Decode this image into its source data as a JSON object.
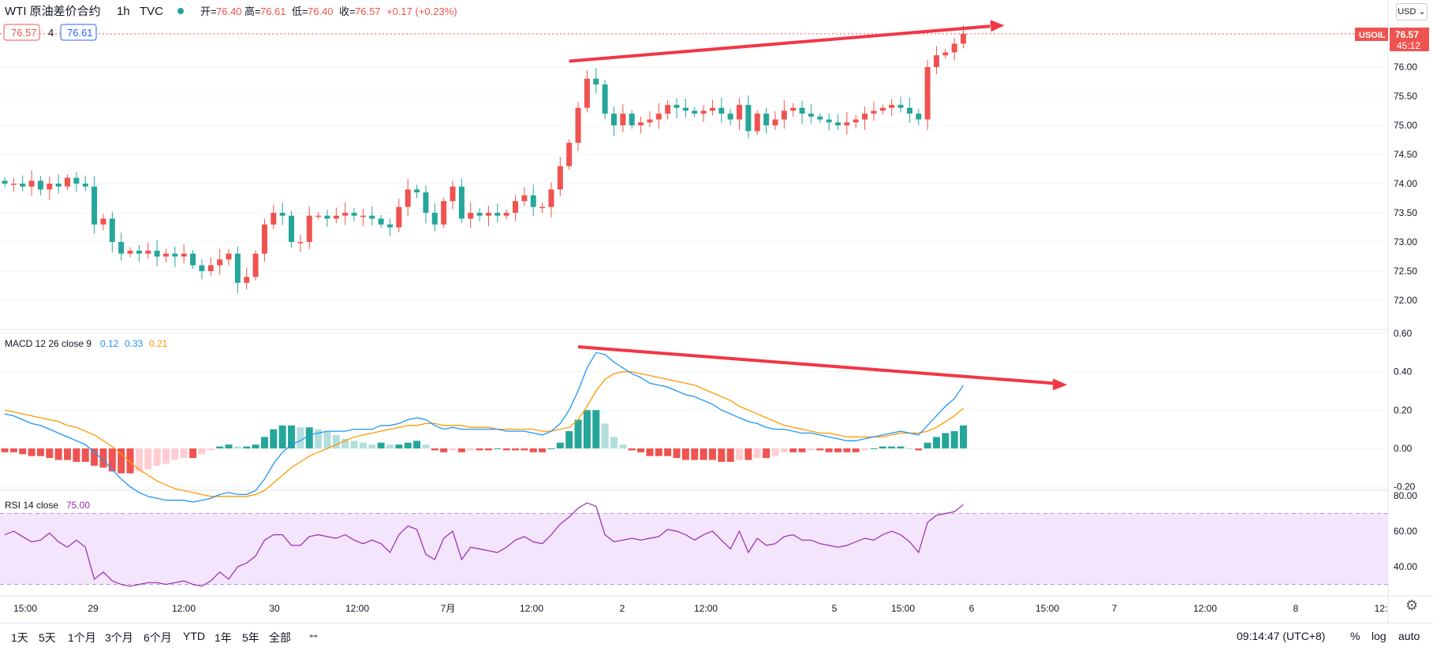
{
  "header": {
    "symbol": "WTI 原油差价合约",
    "interval": "1h",
    "source": "TVC",
    "ohlc": [
      {
        "label": "开=",
        "value": "76.40"
      },
      {
        "label": "高=",
        "value": "76.61"
      },
      {
        "label": "低=",
        "value": "76.40"
      },
      {
        "label": "收=",
        "value": "76.57"
      }
    ],
    "change": "+0.17 (+0.23%)",
    "bid": "76.57",
    "spread": "4",
    "ask": "76.61",
    "currency": "USD",
    "price_tag": {
      "symbol": "USOIL",
      "price": "76.57",
      "countdown": "45:12"
    }
  },
  "colors": {
    "up": "#ef5350",
    "down": "#26a69a",
    "macd_line": "#2196f3",
    "signal_line": "#ff9800",
    "rsi": "#9c27b0",
    "rsi_band": "#f3e5fb",
    "annotation": "#f23645"
  },
  "macd_legend": {
    "name": "MACD 12 26 close 9",
    "v1": "0.12",
    "v2": "0.33",
    "v3": "0.21"
  },
  "rsi_legend": {
    "name": "RSI 14 close",
    "value": "75.00"
  },
  "time_axis": [
    "15:00",
    "29",
    "12:00",
    "30",
    "12:00",
    "7月",
    "12:00",
    "2",
    "12:00",
    "5",
    "15:00",
    "6",
    "15:00",
    "7",
    "12:00",
    "8",
    "12:"
  ],
  "bottom_bar": {
    "timeframes": [
      "1天",
      "5天",
      "1个月",
      "3个月",
      "6个月",
      "YTD",
      "1年",
      "5年",
      "全部"
    ],
    "clock": "09:14:47 (UTC+8)",
    "percent": "%",
    "log": "log",
    "auto": "auto"
  },
  "chart_data": [
    {
      "type": "candlestick",
      "title": "WTI 原油差价合约 · 1h · TVC",
      "ylim": [
        71.7,
        76.85
      ],
      "yticks": [
        "76.00",
        "75.50",
        "75.00",
        "74.50",
        "74.00",
        "73.50",
        "73.00",
        "72.50",
        "72.00"
      ],
      "close": [
        74.0,
        74.0,
        73.95,
        74.05,
        73.9,
        74.0,
        73.95,
        74.1,
        74.0,
        73.95,
        73.3,
        73.4,
        73.0,
        72.8,
        72.85,
        72.8,
        72.85,
        72.75,
        72.8,
        72.75,
        72.8,
        72.6,
        72.5,
        72.6,
        72.7,
        72.8,
        72.3,
        72.4,
        72.8,
        73.3,
        73.5,
        73.45,
        73.0,
        73.0,
        73.45,
        73.45,
        73.4,
        73.45,
        73.5,
        73.45,
        73.45,
        73.4,
        73.3,
        73.25,
        73.6,
        73.9,
        73.85,
        73.5,
        73.3,
        73.7,
        73.95,
        73.4,
        73.5,
        73.45,
        73.5,
        73.45,
        73.5,
        73.7,
        73.8,
        73.6,
        73.6,
        73.9,
        74.3,
        74.7,
        75.3,
        75.8,
        75.7,
        75.2,
        75.0,
        75.2,
        75.0,
        75.05,
        75.1,
        75.2,
        75.35,
        75.3,
        75.25,
        75.2,
        75.25,
        75.3,
        75.2,
        75.1,
        75.35,
        74.9,
        75.2,
        75.0,
        75.1,
        75.25,
        75.3,
        75.2,
        75.15,
        75.1,
        75.05,
        75.0,
        75.05,
        75.1,
        75.2,
        75.25,
        75.3,
        75.35,
        75.3,
        75.2,
        75.1,
        76.0,
        76.2,
        76.25,
        76.4,
        76.57
      ],
      "trend_annotation": {
        "from_bar": 63,
        "from_price": 76.1,
        "to_bar": 110,
        "to_price": 76.7
      }
    },
    {
      "type": "line",
      "title": "MACD 12 26 close 9",
      "ylim": [
        -0.3,
        0.6
      ],
      "yticks": [
        "0.60",
        "0.40",
        "0.20",
        "0.00",
        "-0.20"
      ],
      "series": [
        {
          "name": "MACD",
          "values": [
            0.18,
            0.17,
            0.15,
            0.13,
            0.12,
            0.1,
            0.08,
            0.06,
            0.04,
            0.02,
            -0.02,
            -0.06,
            -0.11,
            -0.16,
            -0.2,
            -0.23,
            -0.25,
            -0.26,
            -0.27,
            -0.27,
            -0.27,
            -0.28,
            -0.27,
            -0.26,
            -0.24,
            -0.23,
            -0.24,
            -0.24,
            -0.22,
            -0.16,
            -0.08,
            -0.02,
            0.02,
            0.04,
            0.07,
            0.08,
            0.09,
            0.09,
            0.09,
            0.1,
            0.1,
            0.1,
            0.12,
            0.12,
            0.13,
            0.15,
            0.16,
            0.15,
            0.12,
            0.1,
            0.11,
            0.1,
            0.1,
            0.1,
            0.1,
            0.1,
            0.09,
            0.09,
            0.09,
            0.08,
            0.07,
            0.09,
            0.13,
            0.2,
            0.3,
            0.42,
            0.5,
            0.49,
            0.45,
            0.42,
            0.39,
            0.37,
            0.34,
            0.33,
            0.32,
            0.3,
            0.28,
            0.27,
            0.25,
            0.23,
            0.2,
            0.18,
            0.16,
            0.14,
            0.13,
            0.11,
            0.1,
            0.1,
            0.09,
            0.08,
            0.08,
            0.07,
            0.06,
            0.05,
            0.04,
            0.04,
            0.05,
            0.06,
            0.07,
            0.08,
            0.09,
            0.08,
            0.07,
            0.12,
            0.17,
            0.22,
            0.26,
            0.33
          ]
        },
        {
          "name": "Signal",
          "values": [
            0.2,
            0.19,
            0.18,
            0.17,
            0.16,
            0.15,
            0.14,
            0.12,
            0.11,
            0.09,
            0.07,
            0.04,
            0.01,
            -0.03,
            -0.07,
            -0.11,
            -0.14,
            -0.17,
            -0.19,
            -0.21,
            -0.22,
            -0.23,
            -0.24,
            -0.25,
            -0.25,
            -0.25,
            -0.25,
            -0.25,
            -0.24,
            -0.22,
            -0.18,
            -0.14,
            -0.1,
            -0.07,
            -0.04,
            -0.02,
            0.0,
            0.02,
            0.04,
            0.06,
            0.07,
            0.08,
            0.09,
            0.1,
            0.11,
            0.12,
            0.12,
            0.13,
            0.13,
            0.12,
            0.12,
            0.12,
            0.11,
            0.11,
            0.11,
            0.1,
            0.1,
            0.1,
            0.1,
            0.1,
            0.09,
            0.09,
            0.1,
            0.11,
            0.15,
            0.22,
            0.3,
            0.36,
            0.39,
            0.4,
            0.4,
            0.39,
            0.38,
            0.37,
            0.36,
            0.35,
            0.34,
            0.33,
            0.31,
            0.29,
            0.27,
            0.25,
            0.22,
            0.2,
            0.18,
            0.16,
            0.14,
            0.12,
            0.11,
            0.1,
            0.09,
            0.08,
            0.08,
            0.07,
            0.06,
            0.06,
            0.06,
            0.06,
            0.06,
            0.07,
            0.08,
            0.08,
            0.08,
            0.09,
            0.11,
            0.14,
            0.17,
            0.21
          ]
        },
        {
          "name": "Histogram",
          "values": [
            -0.02,
            -0.02,
            -0.03,
            -0.04,
            -0.04,
            -0.05,
            -0.06,
            -0.06,
            -0.07,
            -0.07,
            -0.09,
            -0.1,
            -0.12,
            -0.13,
            -0.13,
            -0.12,
            -0.11,
            -0.09,
            -0.08,
            -0.06,
            -0.05,
            -0.05,
            -0.03,
            -0.01,
            0.01,
            0.02,
            0.01,
            0.01,
            0.02,
            0.06,
            0.1,
            0.12,
            0.12,
            0.11,
            0.11,
            0.1,
            0.09,
            0.07,
            0.05,
            0.04,
            0.03,
            0.02,
            0.03,
            0.02,
            0.02,
            0.03,
            0.04,
            0.02,
            -0.01,
            -0.02,
            -0.01,
            -0.02,
            -0.01,
            -0.01,
            -0.01,
            0.0,
            -0.01,
            -0.01,
            -0.01,
            -0.02,
            -0.02,
            0.0,
            0.03,
            0.09,
            0.15,
            0.2,
            0.2,
            0.13,
            0.06,
            0.02,
            -0.01,
            -0.02,
            -0.04,
            -0.04,
            -0.04,
            -0.05,
            -0.06,
            -0.06,
            -0.06,
            -0.06,
            -0.07,
            -0.07,
            -0.06,
            -0.06,
            -0.05,
            -0.05,
            -0.04,
            -0.02,
            -0.02,
            -0.02,
            -0.01,
            -0.01,
            -0.02,
            -0.02,
            -0.02,
            -0.02,
            -0.01,
            0.0,
            0.01,
            0.01,
            0.01,
            0.0,
            -0.01,
            0.03,
            0.06,
            0.08,
            0.09,
            0.12
          ]
        }
      ],
      "trend_annotation": {
        "from_bar": 64,
        "from_value": 0.53,
        "to_bar": 117,
        "to_value": 0.34
      }
    },
    {
      "type": "line",
      "title": "RSI 14 close",
      "ylim": [
        27,
        82
      ],
      "yticks": [
        "80.00",
        "60.00",
        "40.00"
      ],
      "band": [
        30,
        70
      ],
      "series": [
        {
          "name": "RSI",
          "values": [
            58,
            60,
            57,
            54,
            55,
            59,
            54,
            51,
            55,
            51,
            33,
            37,
            32,
            30,
            29,
            30,
            31,
            31,
            30,
            31,
            32,
            30,
            29,
            32,
            37,
            33,
            40,
            42,
            46,
            55,
            58,
            58,
            52,
            52,
            57,
            58,
            57,
            56,
            58,
            55,
            53,
            55,
            53,
            48,
            58,
            63,
            61,
            47,
            44,
            56,
            60,
            44,
            51,
            50,
            49,
            48,
            51,
            55,
            57,
            54,
            53,
            58,
            64,
            68,
            73,
            76,
            74,
            58,
            54,
            55,
            56,
            55,
            56,
            57,
            61,
            60,
            58,
            55,
            58,
            60,
            55,
            50,
            60,
            48,
            56,
            52,
            53,
            57,
            58,
            55,
            55,
            53,
            52,
            51,
            52,
            54,
            56,
            55,
            58,
            60,
            58,
            54,
            48,
            65,
            69,
            70,
            71,
            75
          ]
        }
      ]
    }
  ]
}
